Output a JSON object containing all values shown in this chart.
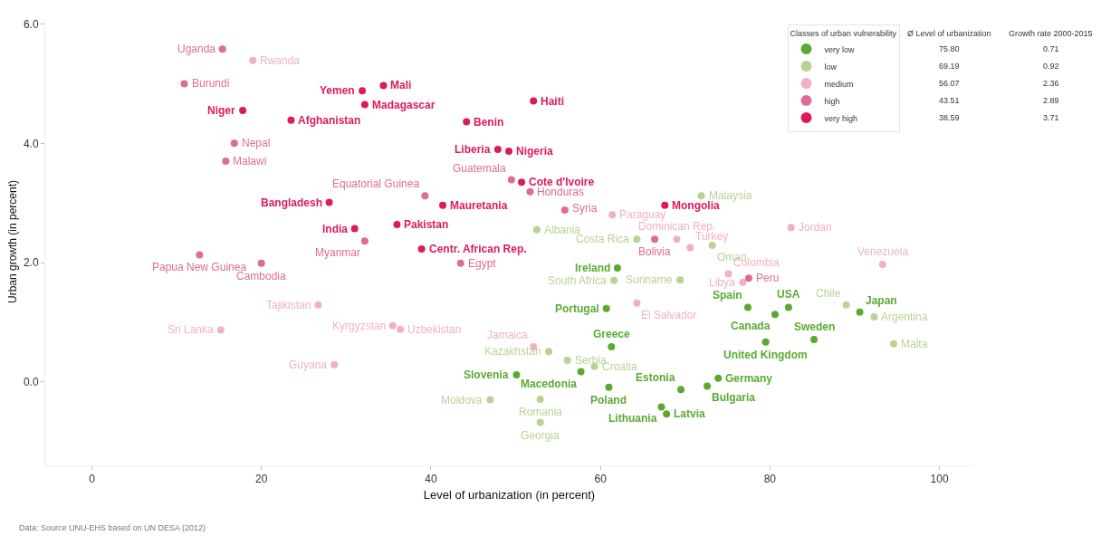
{
  "chart_data": {
    "type": "scatter",
    "xlabel": "Level of urbanization (in percent)",
    "ylabel": "Urban growth (in percent)",
    "legend_title": "Classes of urban vulnerability",
    "xlim": [
      -5.5,
      104
    ],
    "ylim": [
      -1.4,
      6.1
    ],
    "xticks": [
      0,
      20,
      40,
      60,
      80,
      100
    ],
    "yticks": [
      {
        "value": 0,
        "label": "0.0"
      },
      {
        "value": 2,
        "label": "2.0"
      },
      {
        "value": 4,
        "label": "4.0"
      },
      {
        "value": 6,
        "label": "6.0"
      }
    ],
    "grid": false,
    "legend": "top right",
    "marker": "circle",
    "series": [
      {
        "name": "very low",
        "color": "#5aaa32",
        "x": [
          62.0,
          60.7,
          77.4,
          82.2,
          80.6,
          90.6,
          85.2,
          79.5,
          73.9,
          72.6,
          69.5,
          61.3,
          50.1,
          57.7,
          61.0,
          67.2,
          67.8
        ],
        "values": [
          1.91,
          1.23,
          1.25,
          1.25,
          1.13,
          1.17,
          0.71,
          0.67,
          0.06,
          -0.07,
          -0.13,
          0.59,
          0.12,
          0.17,
          -0.09,
          -0.42,
          -0.54
        ]
      },
      {
        "name": "low",
        "color": "#b8d393",
        "x": [
          71.9,
          52.5,
          64.3,
          73.2,
          69.4,
          61.6,
          89.0,
          92.3,
          94.6,
          53.9,
          56.1,
          59.3,
          47.0,
          52.9,
          52.9
        ],
        "values": [
          3.12,
          2.55,
          2.39,
          2.29,
          1.71,
          1.7,
          1.29,
          1.09,
          0.64,
          0.51,
          0.36,
          0.26,
          -0.3,
          -0.29,
          -0.68
        ]
      },
      {
        "name": "medium",
        "color": "#f0b0c6",
        "x": [
          19.0,
          26.7,
          15.2,
          35.5,
          36.4,
          28.6,
          52.1,
          61.4,
          69.0,
          70.6,
          75.1,
          76.8,
          82.5,
          93.3,
          64.3
        ],
        "values": [
          5.39,
          1.29,
          0.87,
          0.94,
          0.88,
          0.29,
          0.59,
          2.8,
          2.39,
          2.25,
          1.81,
          1.67,
          2.59,
          1.97,
          1.32
        ]
      },
      {
        "name": "high",
        "color": "#e06b96",
        "x": [
          15.4,
          10.9,
          16.8,
          15.8,
          12.7,
          20.0,
          32.2,
          39.3,
          43.5,
          49.5,
          51.7,
          55.8,
          66.4,
          77.5
        ],
        "values": [
          5.58,
          5.0,
          4.0,
          3.7,
          2.13,
          1.99,
          2.36,
          3.12,
          1.99,
          3.39,
          3.19,
          2.88,
          2.39,
          1.74
        ]
      },
      {
        "name": "very high",
        "color": "#dc1b5c",
        "x": [
          31.9,
          34.4,
          32.2,
          17.8,
          23.5,
          52.1,
          44.2,
          47.9,
          49.2,
          50.7,
          28.0,
          41.4,
          31.0,
          36.0,
          38.9,
          67.6
        ],
        "values": [
          4.88,
          4.97,
          4.65,
          4.55,
          4.39,
          4.71,
          4.36,
          3.9,
          3.87,
          3.35,
          3.01,
          2.96,
          2.57,
          2.64,
          2.23,
          2.96
        ]
      }
    ],
    "annotations": [
      "Ø Level of urbanization",
      "Growth rate 2000-2015",
      "75.80",
      "69.19",
      "56.07",
      "43.51",
      "38.59",
      "0.71",
      "0.92",
      "2.36",
      "2.89",
      "3.71",
      "Data: Source UNU-EHS based on UN DESA (2012)",
      {
        "text": "Ireland",
        "x": 62.0,
        "y": 1.91
      },
      {
        "text": "Portugal",
        "x": 60.7,
        "y": 1.23
      },
      {
        "text": "Spain",
        "x": 77.4,
        "y": 1.25
      },
      {
        "text": "USA",
        "x": 82.2,
        "y": 1.25
      },
      {
        "text": "Canada",
        "x": 80.6,
        "y": 1.13
      },
      {
        "text": "Japan",
        "x": 90.6,
        "y": 1.17
      },
      {
        "text": "Sweden",
        "x": 85.2,
        "y": 0.71
      },
      {
        "text": "United Kingdom",
        "x": 79.5,
        "y": 0.67
      },
      {
        "text": "Germany",
        "x": 73.9,
        "y": 0.06
      },
      {
        "text": "Bulgaria",
        "x": 72.6,
        "y": -0.07
      },
      {
        "text": "Estonia",
        "x": 69.5,
        "y": -0.13
      },
      {
        "text": "Greece",
        "x": 61.3,
        "y": 0.59
      },
      {
        "text": "Slovenia",
        "x": 50.1,
        "y": 0.12
      },
      {
        "text": "Macedonia",
        "x": 57.7,
        "y": 0.17
      },
      {
        "text": "Poland",
        "x": 61.0,
        "y": -0.09
      },
      {
        "text": "Lithuania",
        "x": 67.2,
        "y": -0.42
      },
      {
        "text": "Latvia",
        "x": 67.8,
        "y": -0.54
      },
      {
        "text": "Malaysia",
        "x": 71.9,
        "y": 3.12
      },
      {
        "text": "Albania",
        "x": 52.5,
        "y": 2.55
      },
      {
        "text": "Costa Rica",
        "x": 64.3,
        "y": 2.39
      },
      {
        "text": "Oman",
        "x": 73.2,
        "y": 2.29
      },
      {
        "text": "Suriname",
        "x": 69.4,
        "y": 1.71
      },
      {
        "text": "South Africa",
        "x": 61.6,
        "y": 1.7
      },
      {
        "text": "Chile",
        "x": 89.0,
        "y": 1.29
      },
      {
        "text": "Argentina",
        "x": 92.3,
        "y": 1.09
      },
      {
        "text": "Malta",
        "x": 94.6,
        "y": 0.64
      },
      {
        "text": "Kazakhstan",
        "x": 53.9,
        "y": 0.51
      },
      {
        "text": "Serbia",
        "x": 56.1,
        "y": 0.36
      },
      {
        "text": "Croatia",
        "x": 59.3,
        "y": 0.26
      },
      {
        "text": "Moldova",
        "x": 47.0,
        "y": -0.3
      },
      {
        "text": "Romania",
        "x": 52.9,
        "y": -0.29
      },
      {
        "text": "Georgia",
        "x": 52.9,
        "y": -0.68
      },
      {
        "text": "Rwanda",
        "x": 19.0,
        "y": 5.39
      },
      {
        "text": "Tajikistan",
        "x": 26.7,
        "y": 1.29
      },
      {
        "text": "Sri Lanka",
        "x": 15.2,
        "y": 0.87
      },
      {
        "text": "Kyrgyzstan",
        "x": 35.5,
        "y": 0.94
      },
      {
        "text": "Uzbekistan",
        "x": 36.4,
        "y": 0.88
      },
      {
        "text": "Guyana",
        "x": 28.6,
        "y": 0.29
      },
      {
        "text": "Jamaica",
        "x": 52.1,
        "y": 0.59
      },
      {
        "text": "Paraguay",
        "x": 61.4,
        "y": 2.8
      },
      {
        "text": "Dominican Rep.",
        "x": 69.0,
        "y": 2.39
      },
      {
        "text": "Turkey",
        "x": 70.6,
        "y": 2.25
      },
      {
        "text": "Colombia",
        "x": 75.1,
        "y": 1.81
      },
      {
        "text": "Libya",
        "x": 76.8,
        "y": 1.67
      },
      {
        "text": "Jordan",
        "x": 82.5,
        "y": 2.59
      },
      {
        "text": "Venezuela",
        "x": 93.3,
        "y": 1.97
      },
      {
        "text": "El Salvador",
        "x": 64.3,
        "y": 1.32
      },
      {
        "text": "Uganda",
        "x": 15.4,
        "y": 5.58
      },
      {
        "text": "Burundi",
        "x": 10.9,
        "y": 5.0
      },
      {
        "text": "Nepal",
        "x": 16.8,
        "y": 4.0
      },
      {
        "text": "Malawi",
        "x": 15.8,
        "y": 3.7
      },
      {
        "text": "Papua New Guinea",
        "x": 12.7,
        "y": 2.13
      },
      {
        "text": "Cambodia",
        "x": 20.0,
        "y": 1.99
      },
      {
        "text": "Myanmar",
        "x": 32.2,
        "y": 2.36
      },
      {
        "text": "Equatorial Guinea",
        "x": 39.3,
        "y": 3.12
      },
      {
        "text": "Egypt",
        "x": 43.5,
        "y": 1.99
      },
      {
        "text": "Guatemala",
        "x": 49.5,
        "y": 3.39
      },
      {
        "text": "Honduras",
        "x": 51.7,
        "y": 3.19
      },
      {
        "text": "Syria",
        "x": 55.8,
        "y": 2.88
      },
      {
        "text": "Bolivia",
        "x": 66.4,
        "y": 2.39
      },
      {
        "text": "Peru",
        "x": 77.5,
        "y": 1.74
      },
      {
        "text": "Yemen",
        "x": 31.9,
        "y": 4.88
      },
      {
        "text": "Mali",
        "x": 34.4,
        "y": 4.97
      },
      {
        "text": "Madagascar",
        "x": 32.2,
        "y": 4.65
      },
      {
        "text": "Niger",
        "x": 17.8,
        "y": 4.55
      },
      {
        "text": "Afghanistan",
        "x": 23.5,
        "y": 4.39
      },
      {
        "text": "Haiti",
        "x": 52.1,
        "y": 4.71
      },
      {
        "text": "Benin",
        "x": 44.2,
        "y": 4.36
      },
      {
        "text": "Liberia",
        "x": 47.9,
        "y": 3.9
      },
      {
        "text": "Nigeria",
        "x": 49.2,
        "y": 3.87
      },
      {
        "text": "Cote d'Ivoire",
        "x": 50.7,
        "y": 3.35
      },
      {
        "text": "Bangladesh",
        "x": 28.0,
        "y": 3.01
      },
      {
        "text": "Mauretania",
        "x": 41.4,
        "y": 2.96
      },
      {
        "text": "India",
        "x": 31.0,
        "y": 2.57
      },
      {
        "text": "Pakistan",
        "x": 36.0,
        "y": 2.64
      },
      {
        "text": "Centr. African Rep.",
        "x": 38.9,
        "y": 2.23
      },
      {
        "text": "Mongolia",
        "x": 67.6,
        "y": 2.96
      }
    ]
  }
}
